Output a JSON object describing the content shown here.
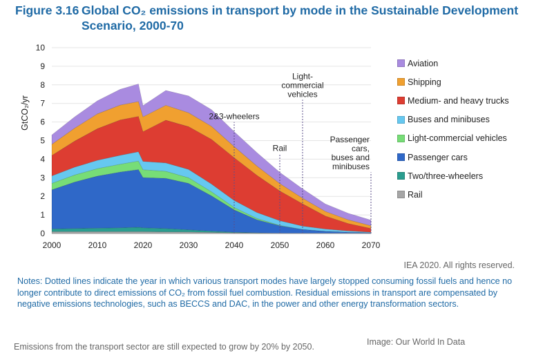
{
  "figure": {
    "number": "Figure 3.16",
    "title_html_line1": "Global CO₂ emissions in transport by mode in the Sustainable Development",
    "title_line2": "Scenario, 2000-70"
  },
  "credit": "IEA 2020. All rights reserved.",
  "notes": "Notes: Dotted lines indicate the year in which various transport modes have largely stopped consuming fossil fuels and hence no longer contribute to direct emissions of CO₂ from fossil fuel combustion. Residual emissions in transport are compensated by negative emissions technologies, such as BECCS and DAC, in the power and other energy transformation sectors.",
  "caption": "Emissions from the transport sector are still expected to grow by 20% by 2050.",
  "image_credit": "Image: Our World In Data",
  "chart_data": {
    "type": "area",
    "stacked": true,
    "ylabel": "GtCO₂/yr",
    "xlim": [
      2000,
      2070
    ],
    "ylim": [
      0,
      10
    ],
    "x_ticks": [
      "2000",
      "2010",
      "2020",
      "2030",
      "2040",
      "2050",
      "2060",
      "2070"
    ],
    "y_ticks": [
      "0",
      "1",
      "2",
      "3",
      "4",
      "5",
      "6",
      "7",
      "8",
      "9",
      "10"
    ],
    "legend_position": "right",
    "x": [
      2000,
      2005,
      2010,
      2015,
      2019,
      2020,
      2025,
      2030,
      2035,
      2040,
      2045,
      2050,
      2055,
      2060,
      2065,
      2070
    ],
    "series": [
      {
        "name": "Rail",
        "color": "#a6a6a6",
        "values": [
          0.1,
          0.1,
          0.1,
          0.1,
          0.1,
          0.1,
          0.09,
          0.08,
          0.06,
          0.04,
          0.03,
          0.02,
          0.02,
          0.02,
          0.02,
          0.02
        ]
      },
      {
        "name": "Two/three-wheelers",
        "color": "#2a9d8f",
        "values": [
          0.15,
          0.17,
          0.19,
          0.21,
          0.24,
          0.21,
          0.18,
          0.12,
          0.07,
          0.03,
          0.01,
          0.0,
          0.0,
          0.0,
          0.0,
          0.0
        ]
      },
      {
        "name": "Passenger cars",
        "color": "#2f68c8",
        "values": [
          2.1,
          2.5,
          2.8,
          3.0,
          3.1,
          2.7,
          2.7,
          2.5,
          1.9,
          1.2,
          0.7,
          0.4,
          0.2,
          0.1,
          0.05,
          0.02
        ]
      },
      {
        "name": "Light-commercial vehicles",
        "color": "#77dd77",
        "values": [
          0.35,
          0.38,
          0.4,
          0.42,
          0.46,
          0.42,
          0.38,
          0.3,
          0.22,
          0.13,
          0.07,
          0.02,
          0.0,
          0.0,
          0.0,
          0.0
        ]
      },
      {
        "name": "Buses and minibuses",
        "color": "#66c8f0",
        "values": [
          0.4,
          0.42,
          0.45,
          0.48,
          0.5,
          0.45,
          0.45,
          0.45,
          0.42,
          0.38,
          0.32,
          0.25,
          0.18,
          0.12,
          0.07,
          0.03
        ]
      },
      {
        "name": "Medium- and heavy trucks",
        "color": "#dd3d32",
        "values": [
          1.1,
          1.4,
          1.7,
          1.9,
          1.9,
          1.6,
          2.3,
          2.3,
          2.4,
          2.3,
          2.0,
          1.6,
          1.2,
          0.7,
          0.4,
          0.2
        ]
      },
      {
        "name": "Shipping",
        "color": "#f0a030",
        "values": [
          0.6,
          0.7,
          0.8,
          0.8,
          0.8,
          0.8,
          0.8,
          0.75,
          0.7,
          0.6,
          0.5,
          0.4,
          0.3,
          0.25,
          0.2,
          0.15
        ]
      },
      {
        "name": "Aviation",
        "color": "#a98be0",
        "values": [
          0.5,
          0.6,
          0.7,
          0.85,
          0.95,
          0.6,
          0.8,
          0.9,
          0.9,
          0.8,
          0.72,
          0.6,
          0.5,
          0.4,
          0.35,
          0.3
        ]
      }
    ],
    "annotations": [
      {
        "text_lines": [
          "2&3-wheelers"
        ],
        "x": 2040,
        "line_top": 6.0
      },
      {
        "text_lines": [
          "Rail"
        ],
        "x": 2050,
        "line_top": 4.3
      },
      {
        "text_lines": [
          "Light-",
          "commercial",
          "vehicles"
        ],
        "x": 2055,
        "line_top": 7.2
      },
      {
        "text_lines": [
          "Passenger",
          "cars,",
          "buses and",
          "minibuses"
        ],
        "x": 2070,
        "line_top": 3.3
      }
    ]
  }
}
